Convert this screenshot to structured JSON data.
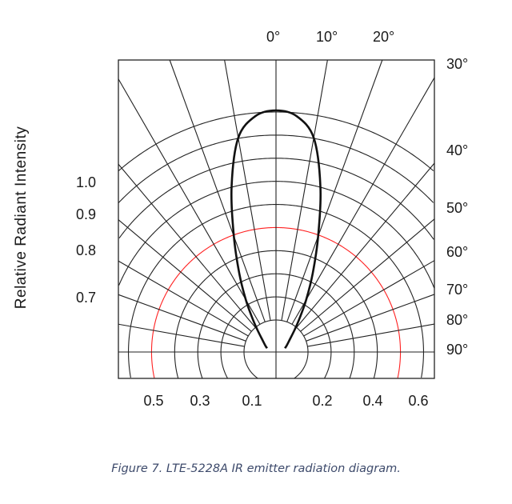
{
  "chart_data": {
    "type": "polar-line",
    "ylabel": "Relative Radiant Intensity",
    "angle_tick_labels_top": [
      "0°",
      "10°",
      "20°"
    ],
    "angle_tick_labels_right": [
      "30°",
      "40°",
      "50°",
      "60°",
      "70°",
      "80°",
      "90°"
    ],
    "left_tick_labels": [
      "1.0",
      "0.9",
      "0.8",
      "0.7"
    ],
    "bottom_tick_labels": [
      "0.5",
      "0.3",
      "0.1",
      "0.2",
      "0.4",
      "0.6"
    ],
    "angle_range_deg": [
      -90,
      90
    ],
    "radial_range": [
      0,
      1
    ],
    "grid": true,
    "highlight_ring_color": "#ff2020",
    "curve_color": "#111111",
    "series": [
      {
        "angles_deg": [
          0,
          5,
          10,
          15,
          20,
          25,
          30,
          35,
          40,
          50,
          60,
          67
        ],
        "values": [
          1.0,
          0.98,
          0.9,
          0.71,
          0.51,
          0.36,
          0.25,
          0.17,
          0.12,
          0.07,
          0.05,
          0.04
        ]
      }
    ]
  },
  "caption": {
    "text": "Figure 7.  LTE-5228A IR emitter radiation diagram.",
    "color": "#3d4a6b"
  }
}
